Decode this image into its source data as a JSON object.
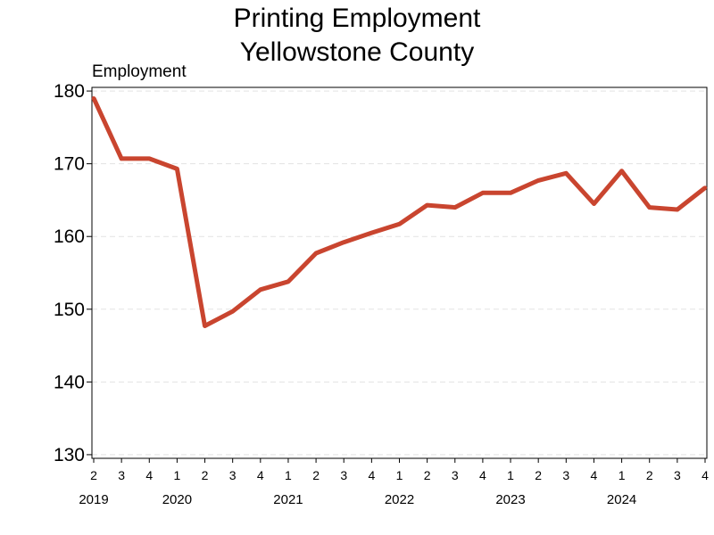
{
  "chart_data": {
    "type": "line",
    "title": [
      "Printing Employment",
      "Yellowstone County"
    ],
    "ylabel": "Employment",
    "xlabel": "",
    "ylim": [
      129.5,
      180.5
    ],
    "yticks": [
      130,
      140,
      150,
      160,
      170,
      180
    ],
    "grid": "horizontal dashed",
    "x_quarter_labels": [
      "2",
      "3",
      "4",
      "1",
      "2",
      "3",
      "4",
      "1",
      "2",
      "3",
      "4",
      "1",
      "2",
      "3",
      "4",
      "1",
      "2",
      "3",
      "4",
      "1",
      "2",
      "3",
      "4"
    ],
    "year_labels": [
      {
        "year": "2019",
        "index": 0
      },
      {
        "year": "2020",
        "index": 3
      },
      {
        "year": "2021",
        "index": 7
      },
      {
        "year": "2022",
        "index": 11
      },
      {
        "year": "2023",
        "index": 15
      },
      {
        "year": "2024",
        "index": 19
      }
    ],
    "series": [
      {
        "name": "Employment",
        "color": "#c9452f",
        "values": [
          179,
          170.7,
          170.7,
          169.3,
          147.7,
          149.7,
          152.7,
          153.8,
          157.7,
          159.2,
          160.5,
          161.7,
          164.3,
          164.0,
          166.0,
          166.0,
          167.7,
          168.7,
          164.5,
          169.0,
          164.0,
          163.7,
          166.7
        ]
      }
    ]
  }
}
